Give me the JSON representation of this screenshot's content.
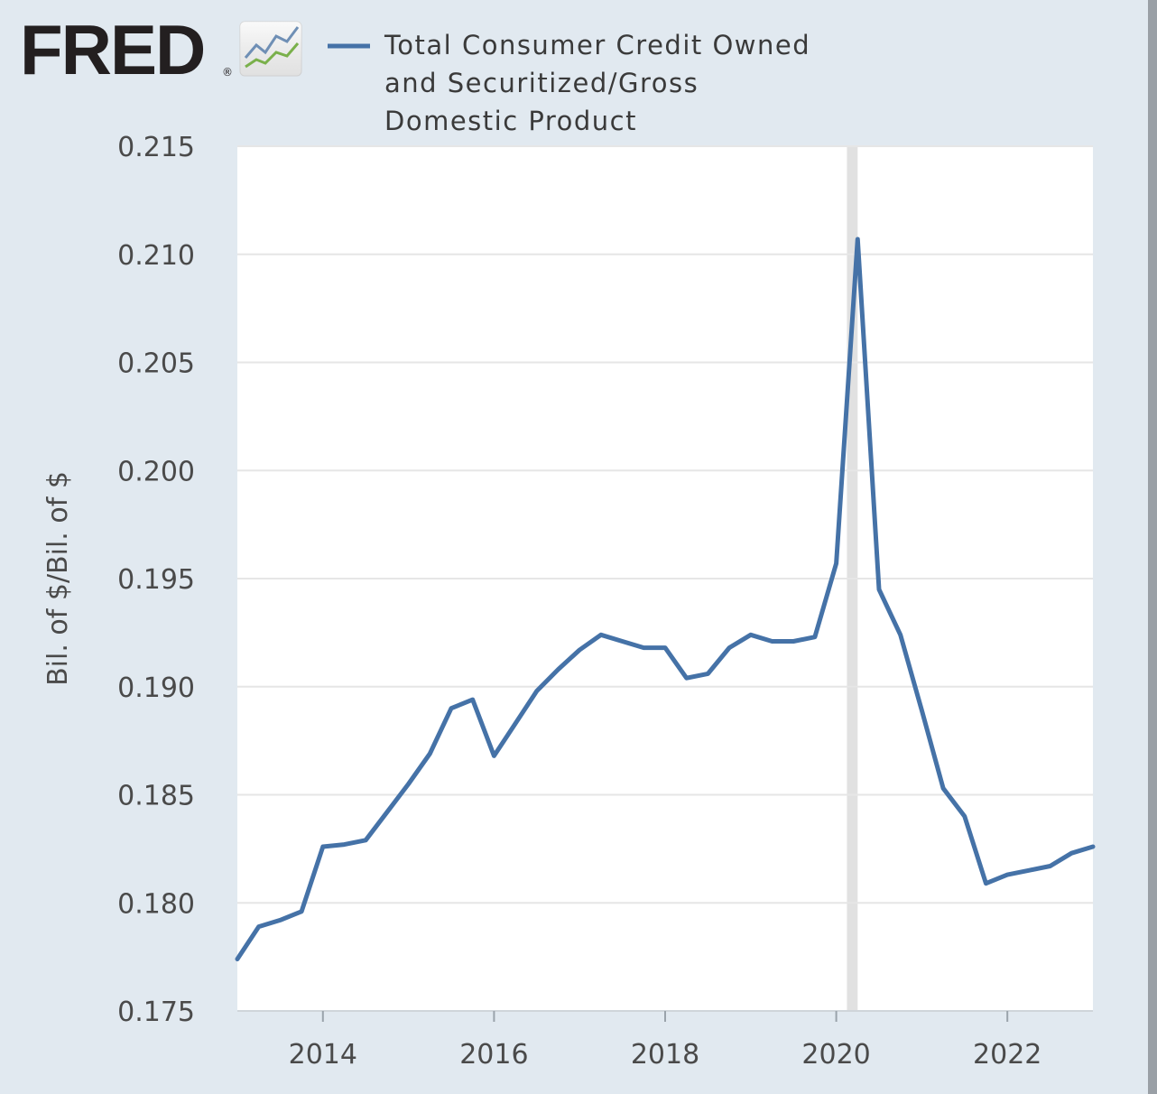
{
  "logo": {
    "text": "FRED",
    "registered": "®"
  },
  "colors": {
    "background": "#e1e9f0",
    "plot_background": "#ffffff",
    "series": "#4572a7",
    "grid": "#e6e6e6",
    "recession": "#e1e1e1"
  },
  "chart_data": {
    "type": "line",
    "title": "",
    "xlabel": "",
    "ylabel": "Bil. of $/Bil. of $",
    "xlim": [
      2013.0,
      2023.0
    ],
    "ylim": [
      0.175,
      0.215
    ],
    "grid": true,
    "legend_position": "top",
    "x_ticks": [
      2014,
      2016,
      2018,
      2020,
      2022
    ],
    "x_tick_labels": [
      "2014",
      "2016",
      "2018",
      "2020",
      "2022"
    ],
    "y_ticks": [
      0.175,
      0.18,
      0.185,
      0.19,
      0.195,
      0.2,
      0.205,
      0.21,
      0.215
    ],
    "y_tick_labels": [
      "0.175",
      "0.180",
      "0.185",
      "0.190",
      "0.195",
      "0.200",
      "0.205",
      "0.210",
      "0.215"
    ],
    "recession": {
      "start": 2020.125,
      "end": 2020.25
    },
    "series": [
      {
        "name": "Total Consumer Credit Owned and Securitized/Gross Domestic Product",
        "legend_lines": [
          "Total Consumer Credit Owned",
          "and Securitized/Gross",
          "Domestic Product"
        ],
        "color": "#4572a7",
        "x": [
          "2013-01-01",
          "2013-04-01",
          "2013-07-01",
          "2013-10-01",
          "2014-01-01",
          "2014-04-01",
          "2014-07-01",
          "2014-10-01",
          "2015-01-01",
          "2015-04-01",
          "2015-07-01",
          "2015-10-01",
          "2016-01-01",
          "2016-04-01",
          "2016-07-01",
          "2016-10-01",
          "2017-01-01",
          "2017-04-01",
          "2017-07-01",
          "2017-10-01",
          "2018-01-01",
          "2018-04-01",
          "2018-07-01",
          "2018-10-01",
          "2019-01-01",
          "2019-04-01",
          "2019-07-01",
          "2019-10-01",
          "2020-01-01",
          "2020-04-01",
          "2020-07-01",
          "2020-10-01",
          "2021-01-01",
          "2021-04-01",
          "2021-07-01",
          "2021-10-01",
          "2022-01-01",
          "2022-04-01",
          "2022-07-01",
          "2022-10-01",
          "2023-01-01"
        ],
        "values": [
          0.1774,
          0.1789,
          0.1792,
          0.1796,
          0.1826,
          0.1827,
          0.1829,
          0.1842,
          0.1855,
          0.1869,
          0.189,
          0.1894,
          0.1868,
          0.1883,
          0.1898,
          0.1908,
          0.1917,
          0.1924,
          0.1921,
          0.1918,
          0.1918,
          0.1904,
          0.1906,
          0.1918,
          0.1924,
          0.1921,
          0.1921,
          0.1923,
          0.1957,
          0.2107,
          0.1945,
          0.1924,
          0.1889,
          0.1853,
          0.184,
          0.1809,
          0.1813,
          0.1815,
          0.1817,
          0.1823,
          0.1826
        ]
      }
    ]
  }
}
